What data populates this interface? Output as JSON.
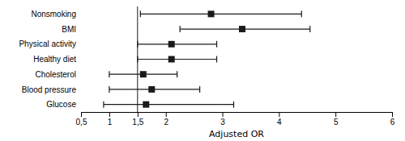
{
  "chart_data": {
    "type": "forest",
    "orientation": "horizontal",
    "categories": [
      "Nonsmoking",
      "BMI",
      "Physical activity",
      "Healthy diet",
      "Cholesterol",
      "Blood pressure",
      "Glucose"
    ],
    "values": [
      2.8,
      3.35,
      2.1,
      2.1,
      1.6,
      1.75,
      1.65
    ],
    "ci_low": [
      1.55,
      2.25,
      1.5,
      1.5,
      1.0,
      1.0,
      0.9
    ],
    "ci_high": [
      4.4,
      4.55,
      2.9,
      2.9,
      2.2,
      2.6,
      3.2
    ],
    "vline": 1.5,
    "xlim": [
      0.5,
      6.0
    ],
    "xticks": [
      {
        "value": 0.5,
        "label": "0,5"
      },
      1,
      {
        "value": 1.5,
        "label": "1,5"
      },
      2,
      3,
      4,
      5,
      6
    ],
    "xlabel": "Adjusted OR",
    "color": "#1a1a1a",
    "marker": "square"
  }
}
